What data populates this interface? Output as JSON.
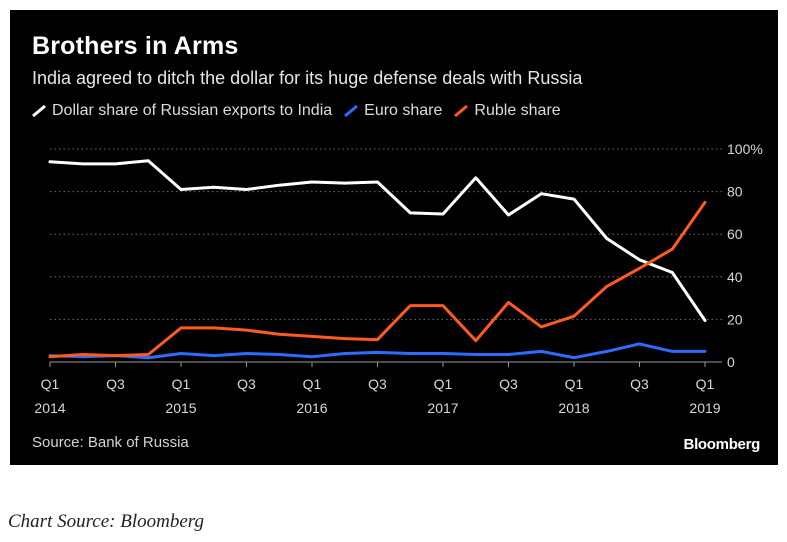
{
  "chart_data": {
    "type": "line",
    "title": "Brothers in Arms",
    "subtitle": "India agreed to ditch the dollar for its huge defense deals with Russia",
    "source": "Source: Bank of Russia",
    "brand": "Bloomberg",
    "ylim": [
      0,
      100
    ],
    "y_ticks": [
      0,
      20,
      40,
      60,
      80,
      100
    ],
    "y_tick_labels": [
      "0",
      "20",
      "40",
      "60",
      "80",
      "100%"
    ],
    "x_tick_labels": [
      {
        "index": 0,
        "line1": "Q1",
        "line2": "2014"
      },
      {
        "index": 2,
        "line1": "Q3",
        "line2": ""
      },
      {
        "index": 4,
        "line1": "Q1",
        "line2": "2015"
      },
      {
        "index": 6,
        "line1": "Q3",
        "line2": ""
      },
      {
        "index": 8,
        "line1": "Q1",
        "line2": "2016"
      },
      {
        "index": 10,
        "line1": "Q3",
        "line2": ""
      },
      {
        "index": 12,
        "line1": "Q1",
        "line2": "2017"
      },
      {
        "index": 14,
        "line1": "Q3",
        "line2": ""
      },
      {
        "index": 16,
        "line1": "Q1",
        "line2": "2018"
      },
      {
        "index": 18,
        "line1": "Q3",
        "line2": ""
      },
      {
        "index": 20,
        "line1": "Q1",
        "line2": "2019"
      }
    ],
    "categories": [
      "Q1 2014",
      "Q2 2014",
      "Q3 2014",
      "Q4 2014",
      "Q1 2015",
      "Q2 2015",
      "Q3 2015",
      "Q4 2015",
      "Q1 2016",
      "Q2 2016",
      "Q3 2016",
      "Q4 2016",
      "Q1 2017",
      "Q2 2017",
      "Q3 2017",
      "Q4 2017",
      "Q1 2018",
      "Q2 2018",
      "Q3 2018",
      "Q4 2018",
      "Q1 2019"
    ],
    "series": [
      {
        "name": "Dollar share of Russian exports to India",
        "color": "#ffffff",
        "values": [
          94,
          93,
          93,
          94.5,
          81,
          82,
          81,
          83,
          84.5,
          84,
          84.5,
          70,
          69.5,
          86.5,
          69,
          79,
          76.5,
          58,
          48,
          42,
          19.5
        ]
      },
      {
        "name": "Euro share",
        "color": "#2e6bff",
        "values": [
          3,
          2.5,
          3,
          2,
          4,
          3,
          4,
          3.5,
          2.5,
          4,
          4.5,
          4,
          4,
          3.5,
          3.5,
          5,
          2,
          5,
          8.5,
          5,
          5
        ]
      },
      {
        "name": "Ruble share",
        "color": "#ff5a1f",
        "values": [
          2.5,
          3.5,
          3,
          3.5,
          16,
          16,
          15,
          13,
          12,
          11,
          10.5,
          26.5,
          26.5,
          10,
          28,
          16.5,
          21.5,
          35.5,
          44,
          53,
          75
        ]
      }
    ]
  },
  "caption": "Chart Source: Bloomberg"
}
